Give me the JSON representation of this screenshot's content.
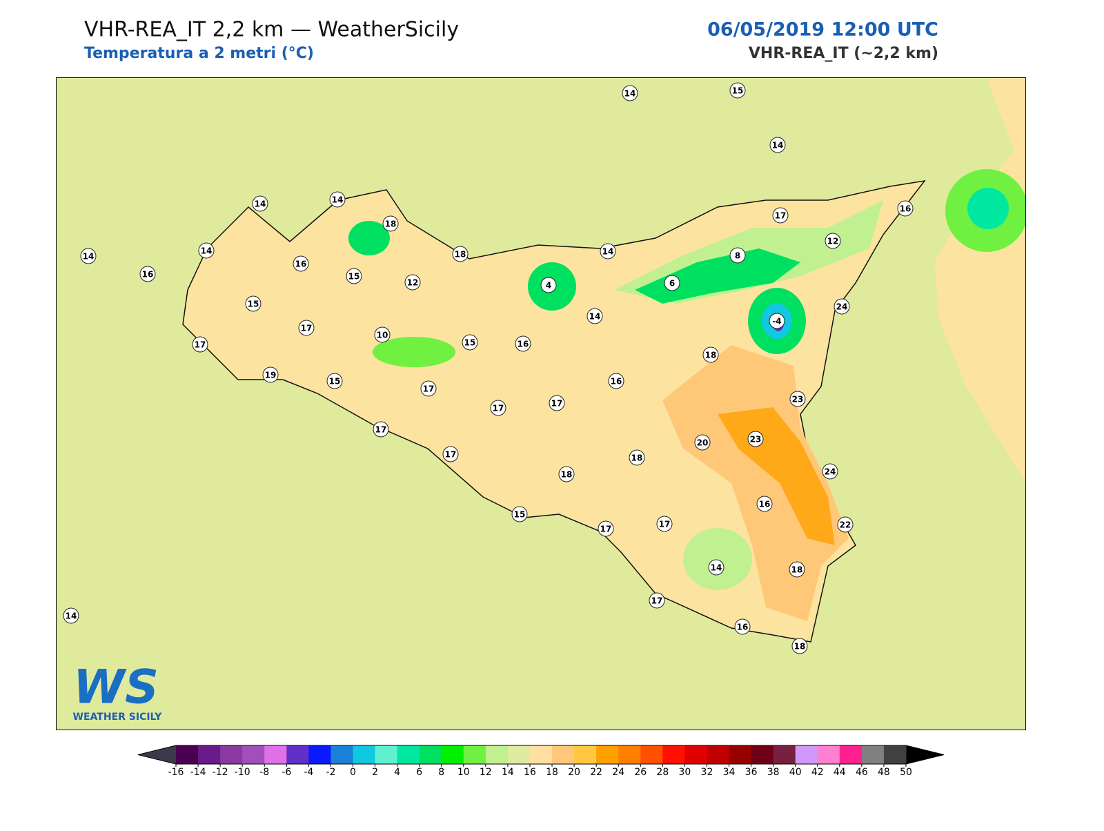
{
  "header": {
    "title": "VHR-REA_IT 2,2 km — WeatherSicily",
    "subtitle": "Temperatura a 2 metri (°C)",
    "date": "06/05/2019 12:00 UTC",
    "model": "VHR-REA_IT (~2,2 km)"
  },
  "colorbar": {
    "ticks": [
      -16,
      -14,
      -12,
      -10,
      -8,
      -6,
      -4,
      -2,
      0,
      2,
      4,
      6,
      8,
      10,
      12,
      14,
      16,
      18,
      20,
      22,
      24,
      26,
      28,
      30,
      32,
      34,
      36,
      38,
      40,
      42,
      44,
      46,
      48,
      50
    ],
    "colors": [
      "#4a0050",
      "#6a1a8a",
      "#8a3aa0",
      "#a050b8",
      "#e070e8",
      "#6030c8",
      "#0a1aff",
      "#1a80d8",
      "#10c8e0",
      "#60f0d0",
      "#00e8a0",
      "#00e060",
      "#00f000",
      "#70f040",
      "#c0f090",
      "#e0eaa0",
      "#ffe0a0",
      "#ffc878",
      "#ffc840",
      "#ffa000",
      "#ff8000",
      "#ff5000",
      "#ff1000",
      "#e00000",
      "#c00000",
      "#980000",
      "#700018",
      "#782040",
      "#d098f8",
      "#ff80d0",
      "#ff2090",
      "#808080",
      "#404040"
    ],
    "under_color": "#3a3a4a",
    "over_color": "#000000"
  },
  "stations": [
    14,
    15,
    14,
    14,
    14,
    18,
    14,
    14,
    16,
    16,
    15,
    18,
    12,
    4,
    14,
    17,
    16,
    12,
    8,
    6,
    15,
    17,
    14,
    -4,
    24,
    17,
    10,
    15,
    16,
    18,
    19,
    15,
    17,
    16,
    23,
    17,
    17,
    17,
    20,
    23,
    17,
    18,
    18,
    24,
    16,
    15,
    17,
    17,
    22,
    14,
    18,
    17,
    14,
    16,
    18
  ],
  "logo": {
    "mark": "WS",
    "text": "WEATHER SICILY"
  }
}
